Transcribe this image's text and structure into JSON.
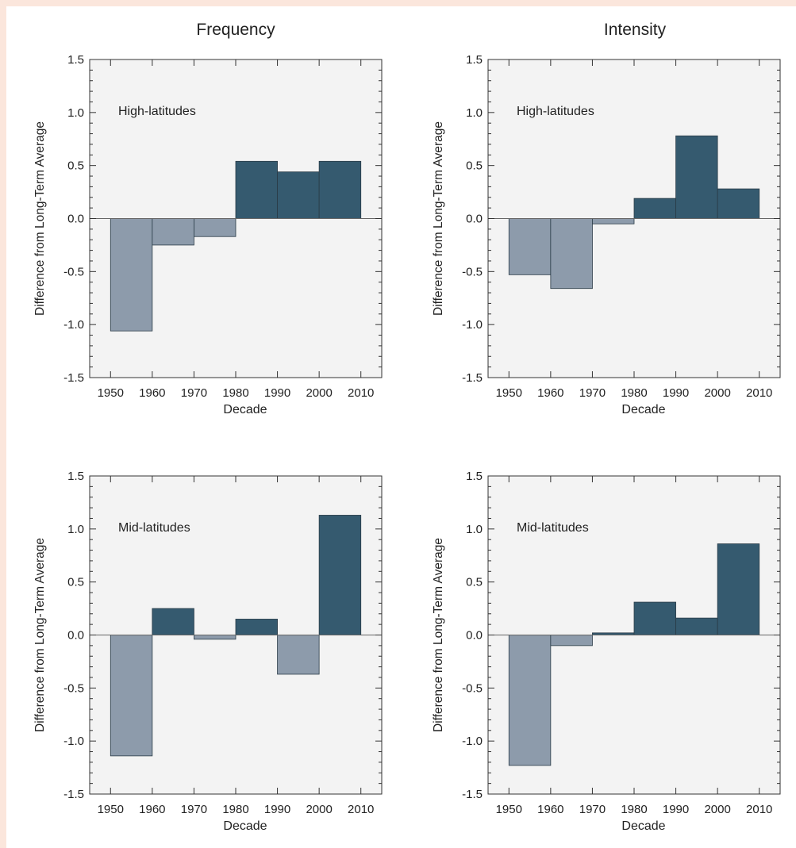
{
  "column_titles": [
    "Frequency",
    "Intensity"
  ],
  "chart_data": [
    {
      "type": "bar",
      "column_title": "Frequency",
      "annotation": "High-latitudes",
      "xlabel": "Decade",
      "ylabel": "Difference from Long-Term Average",
      "xlim": [
        1945,
        2015
      ],
      "ylim": [
        -1.5,
        1.5
      ],
      "x_ticks": [
        "1950",
        "1960",
        "1970",
        "1980",
        "1990",
        "2000",
        "2010"
      ],
      "y_ticks": [
        "1.5",
        "1.0",
        "0.5",
        "0.0",
        "-0.5",
        "-1.0",
        "-1.5"
      ],
      "bins": [
        [
          1950,
          1960
        ],
        [
          1960,
          1970
        ],
        [
          1970,
          1980
        ],
        [
          1980,
          1990
        ],
        [
          1990,
          2000
        ],
        [
          2000,
          2010
        ]
      ],
      "values": [
        -1.06,
        -0.25,
        -0.17,
        0.54,
        0.44,
        0.54
      ],
      "grid": false,
      "colors": {
        "positive": "#355a6f",
        "negative": "#8d9bab"
      }
    },
    {
      "type": "bar",
      "column_title": "Intensity",
      "annotation": "High-latitudes",
      "xlabel": "Decade",
      "ylabel": "Difference from Long-Term Average",
      "xlim": [
        1945,
        2015
      ],
      "ylim": [
        -1.5,
        1.5
      ],
      "x_ticks": [
        "1950",
        "1960",
        "1970",
        "1980",
        "1990",
        "2000",
        "2010"
      ],
      "y_ticks": [
        "1.5",
        "1.0",
        "0.5",
        "0.0",
        "-0.5",
        "-1.0",
        "-1.5"
      ],
      "bins": [
        [
          1950,
          1960
        ],
        [
          1960,
          1970
        ],
        [
          1970,
          1980
        ],
        [
          1980,
          1990
        ],
        [
          1990,
          2000
        ],
        [
          2000,
          2010
        ]
      ],
      "values": [
        -0.53,
        -0.66,
        -0.05,
        0.19,
        0.78,
        0.28
      ],
      "grid": false,
      "colors": {
        "positive": "#355a6f",
        "negative": "#8d9bab"
      }
    },
    {
      "type": "bar",
      "column_title": "Frequency",
      "annotation": "Mid-latitudes",
      "xlabel": "Decade",
      "ylabel": "Difference from Long-Term Average",
      "xlim": [
        1945,
        2015
      ],
      "ylim": [
        -1.5,
        1.5
      ],
      "x_ticks": [
        "1950",
        "1960",
        "1970",
        "1980",
        "1990",
        "2000",
        "2010"
      ],
      "y_ticks": [
        "1.5",
        "1.0",
        "0.5",
        "0.0",
        "-0.5",
        "-1.0",
        "-1.5"
      ],
      "bins": [
        [
          1950,
          1960
        ],
        [
          1960,
          1970
        ],
        [
          1970,
          1980
        ],
        [
          1980,
          1990
        ],
        [
          1990,
          2000
        ],
        [
          2000,
          2010
        ]
      ],
      "values": [
        -1.14,
        0.25,
        -0.04,
        0.15,
        -0.37,
        1.13
      ],
      "grid": false,
      "colors": {
        "positive": "#355a6f",
        "negative": "#8d9bab"
      }
    },
    {
      "type": "bar",
      "column_title": "Intensity",
      "annotation": "Mid-latitudes",
      "xlabel": "Decade",
      "ylabel": "Difference from Long-Term Average",
      "xlim": [
        1945,
        2015
      ],
      "ylim": [
        -1.5,
        1.5
      ],
      "x_ticks": [
        "1950",
        "1960",
        "1970",
        "1980",
        "1990",
        "2000",
        "2010"
      ],
      "y_ticks": [
        "1.5",
        "1.0",
        "0.5",
        "0.0",
        "-0.5",
        "-1.0",
        "-1.5"
      ],
      "bins": [
        [
          1950,
          1960
        ],
        [
          1960,
          1970
        ],
        [
          1970,
          1980
        ],
        [
          1980,
          1990
        ],
        [
          1990,
          2000
        ],
        [
          2000,
          2010
        ]
      ],
      "values": [
        -1.23,
        -0.1,
        0.02,
        0.31,
        0.16,
        0.86
      ],
      "grid": false,
      "colors": {
        "positive": "#355a6f",
        "negative": "#8d9bab"
      }
    }
  ]
}
